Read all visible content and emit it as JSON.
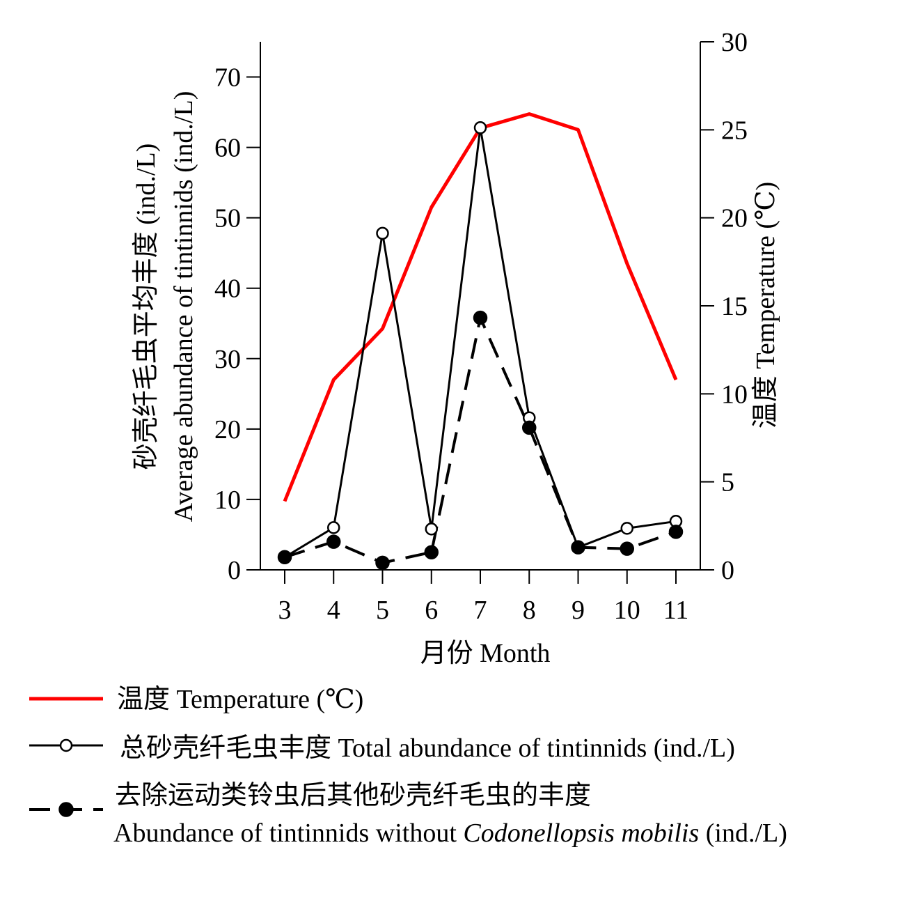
{
  "chart_data": {
    "type": "line",
    "categories": [
      "3",
      "4",
      "5",
      "6",
      "7",
      "8",
      "9",
      "10",
      "11"
    ],
    "xlabel": "月份 Month",
    "ylabel_left": [
      "砂壳纤毛虫平均丰度 (ind./L)",
      "Average abundance of tintinnids (ind./L)"
    ],
    "ylabel_right": "温度 Temperature (℃)",
    "ylim_left": [
      0,
      75
    ],
    "yticks_left": [
      "0",
      "10",
      "20",
      "30",
      "40",
      "50",
      "60",
      "70"
    ],
    "ylim_right": [
      0,
      30
    ],
    "yticks_right": [
      "0",
      "5",
      "10",
      "15",
      "20",
      "25",
      "30"
    ],
    "grid": false,
    "legend_position": "bottom",
    "series": [
      {
        "name": "温度 Temperature (℃)",
        "axis": "right",
        "color": "#ff0000",
        "style": "solid",
        "marker": "none",
        "values": [
          3.9,
          10.8,
          13.7,
          20.6,
          25.1,
          25.9,
          25.0,
          17.4,
          10.8
        ]
      },
      {
        "name": "总砂壳纤毛虫丰度 Total abundance of tintinnids (ind./L)",
        "axis": "left",
        "color": "#000000",
        "style": "solid",
        "marker": "open-circle",
        "values": [
          1.8,
          6.0,
          47.8,
          5.8,
          62.8,
          21.6,
          3.2,
          5.9,
          6.9
        ]
      },
      {
        "name": "去除运动类铃虫后其他砂壳纤毛虫的丰度",
        "name_line2_prefix": "Abundance of tintinnids without ",
        "name_line2_italic": "Codonellopsis mobilis",
        "name_line2_suffix": " (ind./L)",
        "axis": "left",
        "color": "#000000",
        "style": "dashed",
        "marker": "filled-circle",
        "values": [
          1.8,
          4.0,
          1.0,
          2.5,
          35.8,
          20.2,
          3.2,
          3.0,
          5.4
        ]
      }
    ]
  }
}
